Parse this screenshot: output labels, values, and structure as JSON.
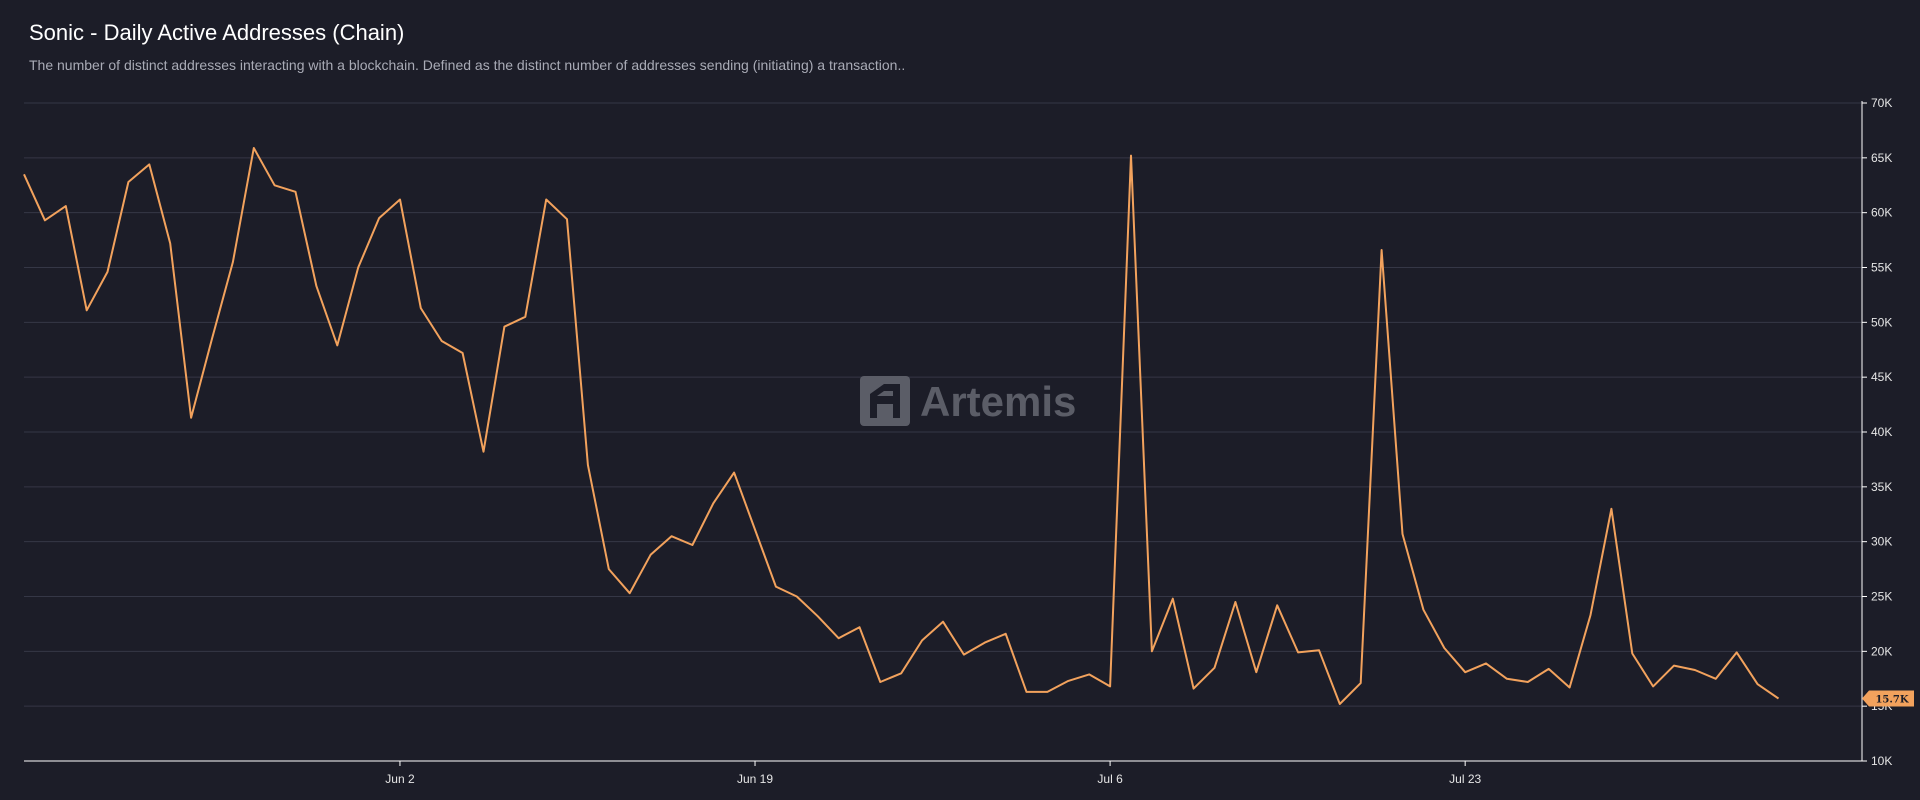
{
  "title": "Sonic - Daily Active Addresses (Chain)",
  "subtitle": "The number of distinct addresses interacting with a blockchain. Defined as the distinct number of addresses sending (initiating) a transaction..",
  "watermark": "Artemis",
  "colors": {
    "background": "#1c1d28",
    "line": "#f2a25d",
    "grid": "#353746",
    "axis": "#ffffff",
    "watermark": "#5b5d67"
  },
  "chart_data": {
    "type": "line",
    "title": "Sonic - Daily Active Addresses (Chain)",
    "x_start": "2025-05-15",
    "x_end": "2025-08-11",
    "x_ticks": [
      {
        "date": "2025-06-02",
        "label": "Jun 2"
      },
      {
        "date": "2025-06-19",
        "label": "Jun 19"
      },
      {
        "date": "2025-07-06",
        "label": "Jul 6"
      },
      {
        "date": "2025-07-23",
        "label": "Jul 23"
      }
    ],
    "y_ticks": [
      {
        "value": 10000,
        "label": "10K"
      },
      {
        "value": 15000,
        "label": "15K"
      },
      {
        "value": 20000,
        "label": "20K"
      },
      {
        "value": 25000,
        "label": "25K"
      },
      {
        "value": 30000,
        "label": "30K"
      },
      {
        "value": 35000,
        "label": "35K"
      },
      {
        "value": 40000,
        "label": "40K"
      },
      {
        "value": 45000,
        "label": "45K"
      },
      {
        "value": 50000,
        "label": "50K"
      },
      {
        "value": 55000,
        "label": "55K"
      },
      {
        "value": 60000,
        "label": "60K"
      },
      {
        "value": 65000,
        "label": "65K"
      },
      {
        "value": 70000,
        "label": "70K"
      }
    ],
    "ylim": [
      10000,
      70000
    ],
    "grid": true,
    "last_value_label": "15.7K",
    "series": [
      {
        "values": [
          63500,
          59300,
          60600,
          51100,
          54600,
          62800,
          64400,
          57200,
          41300,
          48500,
          55500,
          65900,
          62500,
          61900,
          53300,
          47900,
          55000,
          59500,
          61200,
          51300,
          48300,
          47200,
          38200,
          49600,
          50500,
          61200,
          59400,
          37000,
          27500,
          25300,
          28800,
          30500,
          29700,
          33500,
          36300,
          31100,
          25900,
          25000,
          23200,
          21200,
          22200,
          17200,
          18000,
          21000,
          22700,
          19700,
          20800,
          21600,
          16300,
          16300,
          17300,
          17900,
          16800,
          65200,
          20000,
          24800,
          16600,
          18500,
          24500,
          18100,
          24200,
          19900,
          20100,
          15200,
          17100,
          56600,
          30700,
          23800,
          20300,
          18100,
          18900,
          17500,
          17200,
          18400,
          16700,
          23300,
          33000,
          19800,
          16800,
          18700,
          18300,
          17500,
          19900,
          17000,
          15700
        ]
      }
    ]
  }
}
